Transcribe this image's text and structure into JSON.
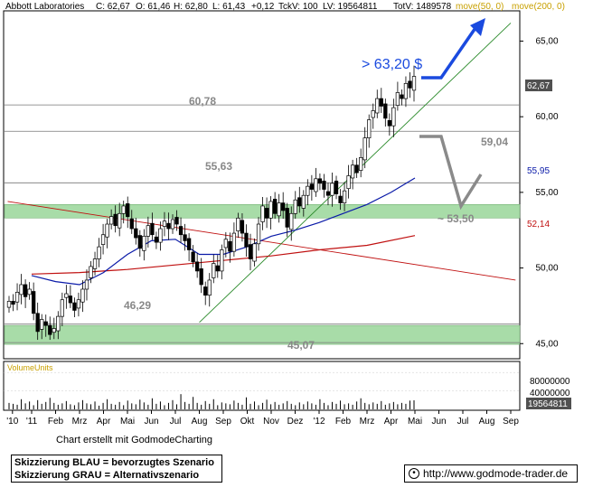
{
  "header": {
    "name": "Abbott Laboratories",
    "close": "C: 62,67",
    "open": "O: 61,46",
    "high": "H: 62,80",
    "low": "L: 61,43",
    "change": "+0,12",
    "tickvol": "TckV: 100",
    "lastvol": "LV: 19564811",
    "totvol": "TotV: 1489578",
    "ma50": "move(50, 0)",
    "ma200": "move(200, 0)"
  },
  "colors": {
    "candle_up": "#ffffff",
    "candle_down": "#000000",
    "ma50": "#0a1aa8",
    "ma200": "#c01010",
    "trend_green": "#2a8a2a",
    "zone_green": "#a8dca8",
    "blue_arrow": "#1a4adf",
    "gray_arrow": "#8a8a8a",
    "price_label_bg": "#505050",
    "volume_label_color": "#c8a000"
  },
  "annotations": {
    "target_up": "> 63,20 $",
    "level_60_78": "60,78",
    "level_59_04": "59,04",
    "level_55_63": "55,63",
    "target_down": "~ 53,50",
    "level_46_29": "46,29",
    "level_45_07": "45,07"
  },
  "price_tags": {
    "last": "62,67",
    "ma50": "55,95",
    "ma200": "52,14"
  },
  "volume": {
    "label": "VolumeUnits",
    "tick_80m": "80000000",
    "tick_40m": "40000000",
    "last": "19564811"
  },
  "credit": "Chart erstellt mit GodmodeCharting",
  "legend": {
    "line1": "Skizzierung BLAU = bevorzugtes Szenario",
    "line2": "Skizzierung GRAU = Alternativszenario"
  },
  "url": "http://www.godmode-trader.de",
  "chart_data": {
    "type": "candlestick",
    "ylim": [
      44,
      67
    ],
    "y_ticks": [
      "45,00",
      "50,00",
      "55,00",
      "60,00",
      "65,00"
    ],
    "y_tick_values": [
      45,
      50,
      55,
      60,
      65
    ],
    "x_tick_labels": [
      "'10",
      "'11",
      "Feb",
      "Mrz",
      "Apr",
      "Mai",
      "Jun",
      "Jul",
      "Aug",
      "Sep",
      "Okt",
      "Nov",
      "Dez",
      "'12",
      "Feb",
      "Mrz",
      "Apr",
      "Mai",
      "Jun",
      "Jul",
      "Aug",
      "Sep"
    ],
    "x_tick_months": [
      -0.8,
      0,
      1,
      2,
      3,
      4,
      5,
      6,
      7,
      8,
      9,
      10,
      11,
      12,
      13,
      14,
      15,
      16,
      17,
      18,
      19,
      20
    ],
    "closes": [
      47.8,
      47.6,
      48.4,
      48.9,
      48.1,
      48.6,
      47.0,
      45.8,
      46.6,
      46.2,
      45.6,
      46.0,
      46.8,
      47.9,
      48.3,
      47.7,
      47.2,
      47.9,
      48.6,
      49.2,
      50.1,
      50.6,
      51.4,
      52.2,
      52.9,
      53.4,
      52.8,
      53.6,
      54.1,
      53.4,
      52.6,
      52.0,
      51.3,
      52.1,
      52.8,
      52.2,
      51.7,
      52.6,
      53.1,
      52.6,
      53.2,
      52.9,
      52.2,
      51.8,
      51.2,
      50.4,
      49.8,
      48.9,
      48.2,
      49.2,
      50.3,
      49.8,
      51.2,
      51.9,
      51.1,
      52.3,
      53.3,
      52.3,
      51.4,
      50.6,
      51.6,
      52.9,
      54.1,
      53.3,
      54.4,
      53.6,
      54.3,
      53.8,
      52.7,
      53.6,
      54.5,
      54.1,
      54.8,
      55.4,
      55.2,
      55.9,
      55.6,
      55.2,
      54.8,
      55.6,
      54.9,
      54.3,
      55.1,
      56.1,
      56.8,
      56.3,
      57.3,
      58.6,
      59.8,
      60.4,
      61.2,
      60.7,
      59.9,
      59.4,
      60.6,
      61.6,
      61.2,
      62.2,
      61.9,
      62.67
    ],
    "ma50_points": [
      [
        0,
        49.5
      ],
      [
        1,
        49.1
      ],
      [
        2,
        48.9
      ],
      [
        3,
        49.7
      ],
      [
        4,
        50.9
      ],
      [
        5,
        51.8
      ],
      [
        6,
        51.9
      ],
      [
        7,
        50.9
      ],
      [
        8,
        50.9
      ],
      [
        9,
        51.4
      ],
      [
        10,
        52.1
      ],
      [
        11,
        52.5
      ],
      [
        12,
        53.0
      ],
      [
        13,
        53.6
      ],
      [
        14,
        54.2
      ],
      [
        15,
        55.0
      ],
      [
        16,
        55.95
      ]
    ],
    "ma200_points": [
      [
        0,
        49.6
      ],
      [
        2,
        49.7
      ],
      [
        4,
        49.9
      ],
      [
        6,
        50.2
      ],
      [
        8,
        50.5
      ],
      [
        10,
        50.8
      ],
      [
        12,
        51.2
      ],
      [
        14,
        51.5
      ],
      [
        16,
        52.14
      ]
    ],
    "trend_resistance": [
      [
        -1.0,
        54.4
      ],
      [
        20.2,
        49.2
      ]
    ],
    "trend_support": [
      [
        7.0,
        46.4
      ],
      [
        20.0,
        66.2
      ]
    ],
    "horizontal_levels": [
      60.78,
      59.04,
      55.63,
      46.29,
      45.07
    ],
    "zones": [
      [
        53.3,
        54.2
      ],
      [
        44.95,
        46.2
      ]
    ],
    "volume_values_m": [
      14,
      12,
      10,
      22,
      13,
      17,
      9,
      20,
      12,
      16,
      25,
      14,
      10,
      13,
      18,
      11,
      9,
      15,
      20,
      13,
      11,
      17,
      8,
      14,
      22,
      12,
      10,
      16,
      9,
      19,
      13,
      11,
      21,
      15,
      10,
      24,
      12,
      17,
      9,
      14,
      20,
      11,
      33,
      16,
      12,
      27,
      14,
      10,
      18,
      12,
      22,
      9,
      15,
      13,
      11,
      19,
      14,
      10,
      26,
      12,
      17,
      9,
      14,
      21,
      11,
      16,
      10,
      13,
      18,
      12,
      9,
      15,
      11,
      17,
      13,
      10,
      22,
      14,
      9,
      16,
      12,
      19,
      11,
      13,
      10,
      17,
      24,
      14,
      11,
      15,
      12,
      18,
      10,
      13,
      16,
      11,
      14,
      12,
      19,
      19.6
    ]
  }
}
